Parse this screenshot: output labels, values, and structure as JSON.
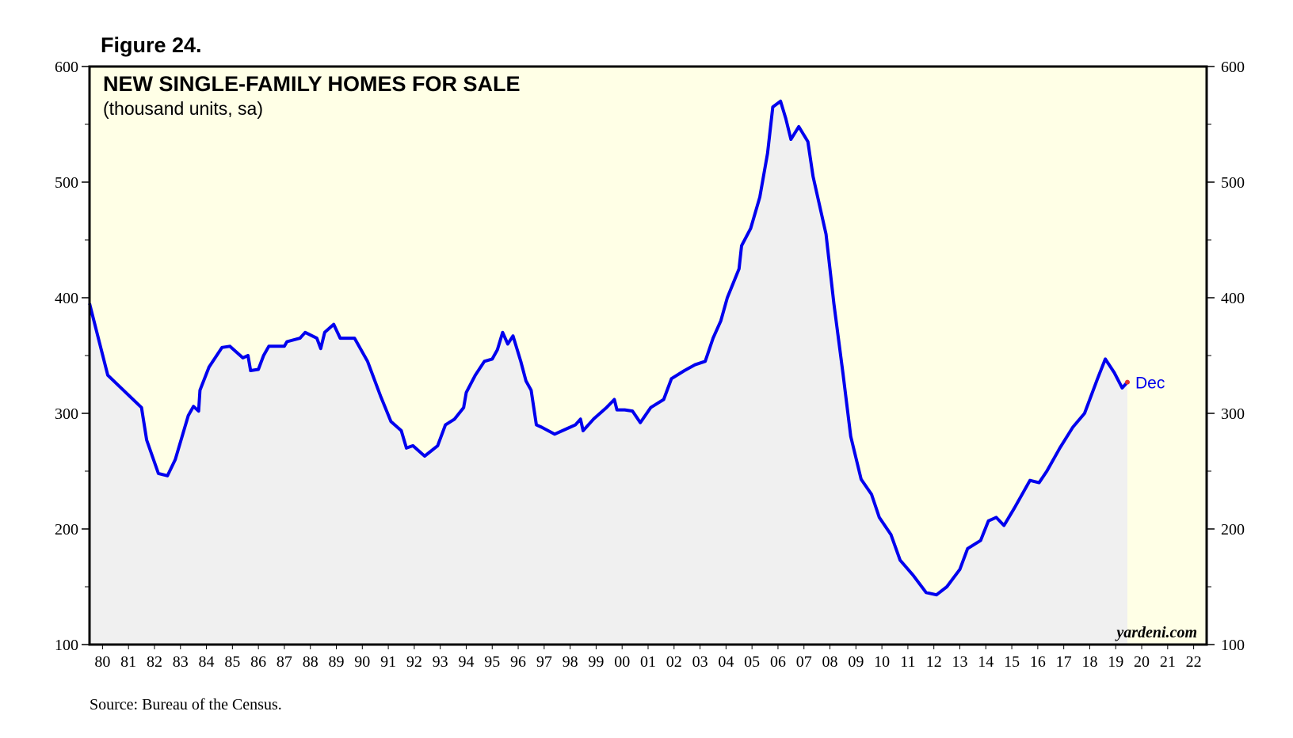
{
  "chart_data": {
    "type": "area-line",
    "figure_label": "Figure 24.",
    "title": "NEW SINGLE-FAMILY HOMES FOR SALE",
    "subtitle": "(thousand units, sa)",
    "watermark": "yardeni.com",
    "source": "Source: Bureau of the Census.",
    "annotation": "Dec",
    "color": "#0000ee",
    "fill_color": "#f0f0f0",
    "background_color": "#ffffe6",
    "xlim": [
      1980,
      2023
    ],
    "ylim": [
      100,
      600
    ],
    "yticks": [
      100,
      200,
      300,
      400,
      500,
      600
    ],
    "yminorticks": [
      150,
      250,
      350,
      450,
      550
    ],
    "xticks": [
      {
        "value": 1980.5,
        "label": "80"
      },
      {
        "value": 1981.5,
        "label": "81"
      },
      {
        "value": 1982.5,
        "label": "82"
      },
      {
        "value": 1983.5,
        "label": "83"
      },
      {
        "value": 1984.5,
        "label": "84"
      },
      {
        "value": 1985.5,
        "label": "85"
      },
      {
        "value": 1986.5,
        "label": "86"
      },
      {
        "value": 1987.5,
        "label": "87"
      },
      {
        "value": 1988.5,
        "label": "88"
      },
      {
        "value": 1989.5,
        "label": "89"
      },
      {
        "value": 1990.5,
        "label": "90"
      },
      {
        "value": 1991.5,
        "label": "91"
      },
      {
        "value": 1992.5,
        "label": "92"
      },
      {
        "value": 1993.5,
        "label": "93"
      },
      {
        "value": 1994.5,
        "label": "94"
      },
      {
        "value": 1995.5,
        "label": "95"
      },
      {
        "value": 1996.5,
        "label": "96"
      },
      {
        "value": 1997.5,
        "label": "97"
      },
      {
        "value": 1998.5,
        "label": "98"
      },
      {
        "value": 1999.5,
        "label": "99"
      },
      {
        "value": 2000.5,
        "label": "00"
      },
      {
        "value": 2001.5,
        "label": "01"
      },
      {
        "value": 2002.5,
        "label": "02"
      },
      {
        "value": 2003.5,
        "label": "03"
      },
      {
        "value": 2004.5,
        "label": "04"
      },
      {
        "value": 2005.5,
        "label": "05"
      },
      {
        "value": 2006.5,
        "label": "06"
      },
      {
        "value": 2007.5,
        "label": "07"
      },
      {
        "value": 2008.5,
        "label": "08"
      },
      {
        "value": 2009.5,
        "label": "09"
      },
      {
        "value": 2010.5,
        "label": "10"
      },
      {
        "value": 2011.5,
        "label": "11"
      },
      {
        "value": 2012.5,
        "label": "12"
      },
      {
        "value": 2013.5,
        "label": "13"
      },
      {
        "value": 2014.5,
        "label": "14"
      },
      {
        "value": 2015.5,
        "label": "15"
      },
      {
        "value": 2016.5,
        "label": "16"
      },
      {
        "value": 2017.5,
        "label": "17"
      },
      {
        "value": 2018.5,
        "label": "18"
      },
      {
        "value": 2019.5,
        "label": "19"
      },
      {
        "value": 2020.5,
        "label": "20"
      },
      {
        "value": 2021.5,
        "label": "21"
      },
      {
        "value": 2022.5,
        "label": "22"
      }
    ],
    "x": [
      1980.0,
      1980.7,
      1982.0,
      1982.2,
      1982.65,
      1983.0,
      1983.3,
      1983.8,
      1984.0,
      1984.2,
      1984.25,
      1984.6,
      1985.1,
      1985.4,
      1985.9,
      1986.1,
      1986.2,
      1986.5,
      1986.7,
      1986.9,
      1987.5,
      1987.6,
      1988.1,
      1988.3,
      1988.75,
      1988.9,
      1989.05,
      1989.4,
      1989.65,
      1990.2,
      1990.7,
      1991.2,
      1991.6,
      1992.0,
      1992.2,
      1992.45,
      1992.8,
      1992.9,
      1993.4,
      1993.7,
      1994.05,
      1994.4,
      1994.5,
      1994.85,
      1995.2,
      1995.5,
      1995.7,
      1995.9,
      1996.1,
      1996.3,
      1996.6,
      1996.8,
      1997.0,
      1997.2,
      1997.4,
      1997.9,
      1998.4,
      1998.7,
      1998.9,
      1999.0,
      1999.4,
      1999.9,
      2000.2,
      2000.3,
      2000.6,
      2000.9,
      2001.2,
      2001.6,
      2002.1,
      2002.4,
      2002.9,
      2003.3,
      2003.7,
      2004.0,
      2004.3,
      2004.55,
      2005.0,
      2005.1,
      2005.45,
      2005.8,
      2006.1,
      2006.3,
      2006.6,
      2006.8,
      2007.0,
      2007.3,
      2007.65,
      2007.85,
      2008.35,
      2008.65,
      2009.0,
      2009.3,
      2009.7,
      2010.1,
      2010.4,
      2010.85,
      2011.2,
      2011.7,
      2012.2,
      2012.6,
      2013.0,
      2013.5,
      2013.8,
      2014.3,
      2014.6,
      2014.9,
      2015.2,
      2015.6,
      2016.2,
      2016.55,
      2016.85,
      2017.35,
      2017.85,
      2018.3,
      2018.8,
      2019.1,
      2019.45,
      2019.75,
      2019.95
    ],
    "values": [
      395,
      333,
      305,
      277,
      248,
      246,
      260,
      298,
      306,
      302,
      320,
      340,
      357,
      358,
      348,
      350,
      337,
      338,
      350,
      358,
      358,
      362,
      365,
      370,
      365,
      356,
      370,
      377,
      365,
      365,
      345,
      315,
      293,
      285,
      270,
      272,
      265,
      263,
      272,
      290,
      295,
      305,
      318,
      333,
      345,
      347,
      355,
      370,
      360,
      367,
      345,
      328,
      320,
      290,
      288,
      282,
      287,
      290,
      295,
      285,
      295,
      305,
      312,
      303,
      303,
      302,
      292,
      305,
      312,
      330,
      337,
      342,
      345,
      365,
      380,
      400,
      425,
      445,
      460,
      487,
      525,
      565,
      570,
      555,
      537,
      548,
      535,
      505,
      455,
      395,
      335,
      280,
      243,
      230,
      210,
      195,
      173,
      160,
      145,
      143,
      150,
      165,
      183,
      190,
      207,
      210,
      203,
      218,
      242,
      240,
      250,
      270,
      288,
      300,
      330,
      347,
      335,
      322,
      327
    ]
  }
}
